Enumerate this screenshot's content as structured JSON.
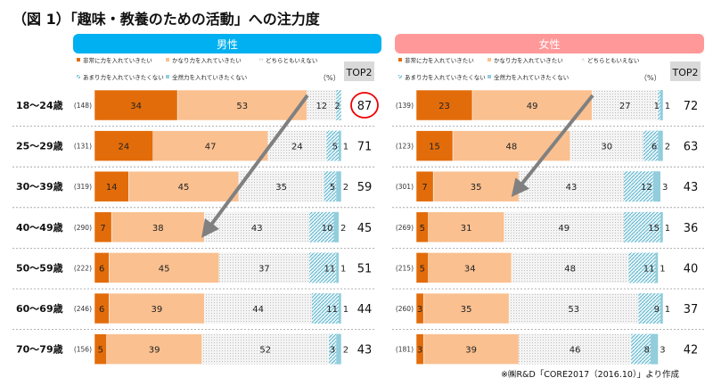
{
  "title": "（図 1）「趣味・教養のための活動」への注力度",
  "footnote": "※㈱R&D「CORE2017（2016.10）」より作成",
  "chart_data": {
    "type": "bar",
    "orientation": "horizontal",
    "stacked": true,
    "unit_label": "（%）",
    "top2_label": "TOP2",
    "categories": [
      "18～24歳",
      "25～29歳",
      "30～39歳",
      "40～49歳",
      "50～59歳",
      "60～69歳",
      "70～79歳"
    ],
    "legend": [
      "非常に力を入れていきたい",
      "かなり力を入れていきたい",
      "どちらともいえない",
      "あまり力を入れていきたくない",
      "全然力を入れていきたくない"
    ],
    "colors": [
      "#e36c0a",
      "#fac090",
      "#d9d9d9",
      "#92cddc",
      "#92cddc"
    ],
    "panels": [
      {
        "name": "男性",
        "header_color": "#00b0f0",
        "n": [
          "(148)",
          "(131)",
          "(319)",
          "(290)",
          "(222)",
          "(246)",
          "(156)"
        ],
        "series": [
          {
            "name": "非常に力を入れていきたい",
            "values": [
              34,
              24,
              14,
              7,
              6,
              6,
              5
            ]
          },
          {
            "name": "かなり力を入れていきたい",
            "values": [
              53,
              47,
              45,
              38,
              45,
              39,
              39
            ]
          },
          {
            "name": "どちらともいえない",
            "values": [
              12,
              24,
              35,
              43,
              37,
              44,
              52
            ]
          },
          {
            "name": "あまり力を入れていきたくない",
            "values": [
              2,
              5,
              5,
              10,
              11,
              11,
              3
            ]
          },
          {
            "name": "全然力を入れていきたくない",
            "values": [
              0,
              1,
              2,
              2,
              1,
              1,
              2
            ]
          }
        ],
        "top2": [
          87,
          71,
          59,
          45,
          51,
          44,
          43
        ],
        "highlight_top2_index": 0,
        "arrow": {
          "from_category": "18～24歳",
          "to_category": "40～49歳"
        }
      },
      {
        "name": "女性",
        "header_color": "#ff9999",
        "n": [
          "(139)",
          "(123)",
          "(301)",
          "(269)",
          "(215)",
          "(260)",
          "(181)"
        ],
        "series": [
          {
            "name": "非常に力を入れていきたい",
            "values": [
              23,
              15,
              7,
              5,
              5,
              3,
              3
            ]
          },
          {
            "name": "かなり力を入れていきたい",
            "values": [
              49,
              48,
              35,
              31,
              34,
              35,
              39
            ]
          },
          {
            "name": "どちらともいえない",
            "values": [
              27,
              30,
              43,
              49,
              48,
              53,
              46
            ]
          },
          {
            "name": "あまり力を入れていきたくない",
            "values": [
              1,
              6,
              12,
              15,
              11,
              9,
              8
            ]
          },
          {
            "name": "全然力を入れていきたくない",
            "values": [
              1,
              2,
              3,
              1,
              1,
              1,
              3
            ]
          }
        ],
        "top2": [
          72,
          63,
          43,
          36,
          40,
          37,
          42
        ],
        "arrow": {
          "from_category": "18～24歳",
          "to_category": "30～39歳"
        }
      }
    ]
  }
}
